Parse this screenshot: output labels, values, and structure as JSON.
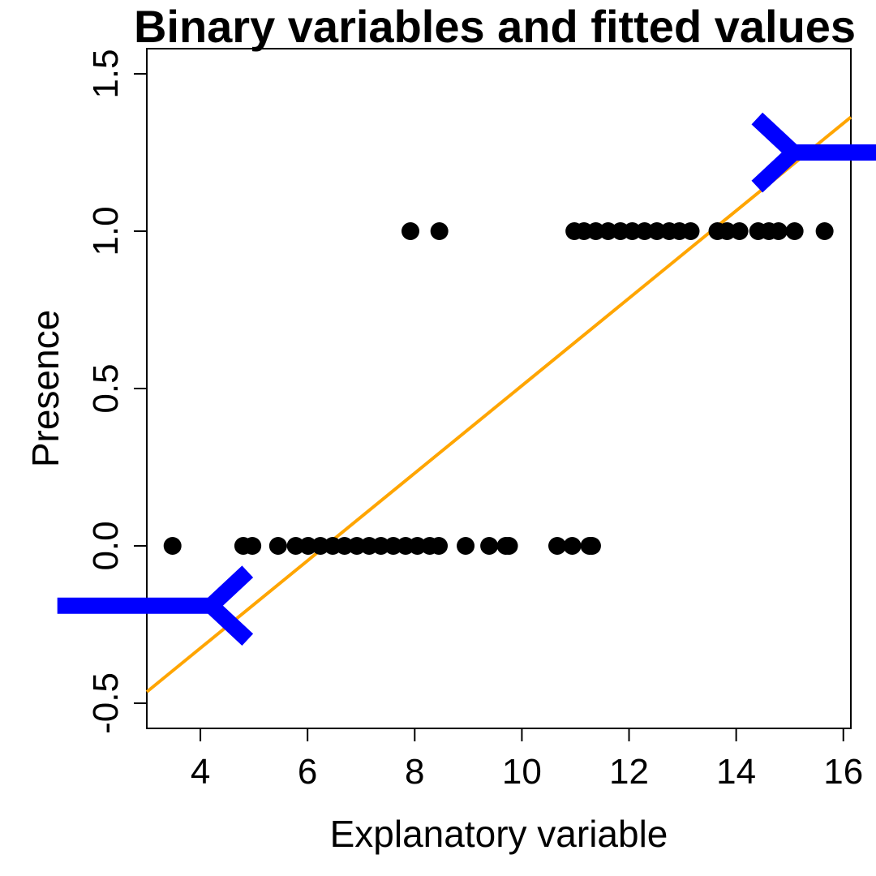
{
  "chart_data": {
    "type": "scatter",
    "title": "Binary variables and fitted values",
    "xlabel": "Explanatory variable",
    "ylabel": "Presence",
    "xlim": [
      3.0,
      16.14
    ],
    "ylim": [
      -0.58,
      1.58
    ],
    "xticks": [
      4,
      6,
      8,
      10,
      12,
      14,
      16
    ],
    "yticks": [
      -0.5,
      0.0,
      0.5,
      1.0,
      1.5
    ],
    "xtick_labels": [
      "4",
      "6",
      "8",
      "10",
      "12",
      "14",
      "16"
    ],
    "ytick_labels": [
      "-0.5",
      "0.0",
      "0.5",
      "1.0",
      "1.5"
    ],
    "grid": false,
    "points": {
      "color": "#000000",
      "y1_x": [
        7.92,
        8.46,
        10.98,
        11.16,
        11.38,
        11.61,
        11.84,
        12.06,
        12.29,
        12.52,
        12.75,
        12.94,
        13.15,
        13.65,
        13.83,
        14.06,
        14.41,
        14.61,
        14.79,
        15.09,
        15.65
      ],
      "y0_x": [
        3.48,
        4.8,
        4.97,
        5.45,
        5.78,
        6.01,
        6.24,
        6.47,
        6.69,
        6.92,
        7.15,
        7.37,
        7.6,
        7.83,
        8.05,
        8.28,
        8.45,
        8.95,
        9.39,
        9.7,
        9.76,
        10.66,
        10.94,
        11.26,
        11.31
      ]
    },
    "fitted_line": {
      "color": "#FFA500",
      "intercept": -0.881,
      "slope": 0.139
    },
    "annotations": [
      {
        "type": "arrow",
        "direction": "right",
        "color": "#0000FF",
        "y": -0.19,
        "x_from": 1.33,
        "x_to": 4.2
      },
      {
        "type": "arrow",
        "direction": "left",
        "color": "#0000FF",
        "y": 1.25,
        "x_from": 17.6,
        "x_to": 15.07
      }
    ]
  }
}
